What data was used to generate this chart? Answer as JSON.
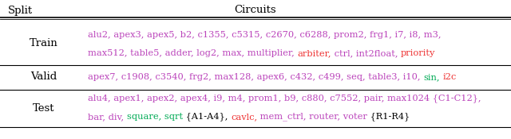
{
  "title_split": "Split",
  "title_circuits": "Circuits",
  "train_line1": [
    {
      "t": "alu2, apex3, apex5, b2, c1355, c5315, c2670, c6288, prom2, frg1, i7, i8, m3,",
      "c": "#bb44bb"
    },
    {
      "t": "",
      "c": "#000000"
    }
  ],
  "train_line2": [
    {
      "t": "max512, table5, adder, log2, max, multiplier, ",
      "c": "#bb44bb"
    },
    {
      "t": "arbiter,",
      "c": "#ee3333"
    },
    {
      "t": " ctrl, int2float, ",
      "c": "#bb44bb"
    },
    {
      "t": "priority",
      "c": "#ee3333"
    }
  ],
  "valid_line1": [
    {
      "t": "apex7, c1908, c3540, frg2, max128, apex6, c432, c499, seq, table3, i10, ",
      "c": "#bb44bb"
    },
    {
      "t": "sin,",
      "c": "#00aa55"
    },
    {
      "t": " ",
      "c": "#000000"
    },
    {
      "t": "i2c",
      "c": "#ee3333"
    }
  ],
  "test_line1": [
    {
      "t": "alu4, apex1, apex2, apex4, i9, m4, prom1, b9, c880, c7552, pair, max1024 {C1-C12},",
      "c": "#bb44bb"
    },
    {
      "t": "",
      "c": "#000000"
    }
  ],
  "test_line2": [
    {
      "t": "bar, div, ",
      "c": "#bb44bb"
    },
    {
      "t": "square, sqrt",
      "c": "#00aa55"
    },
    {
      "t": " {A1-A4}, ",
      "c": "#000000"
    },
    {
      "t": "cavlc,",
      "c": "#ee3333"
    },
    {
      "t": " mem_ctrl, router, voter",
      "c": "#bb44bb"
    },
    {
      "t": " {R1-R4}",
      "c": "#000000"
    }
  ],
  "bg": "#ffffff",
  "fs": 8.2,
  "header_fs": 9.5,
  "label_fs": 9.5
}
